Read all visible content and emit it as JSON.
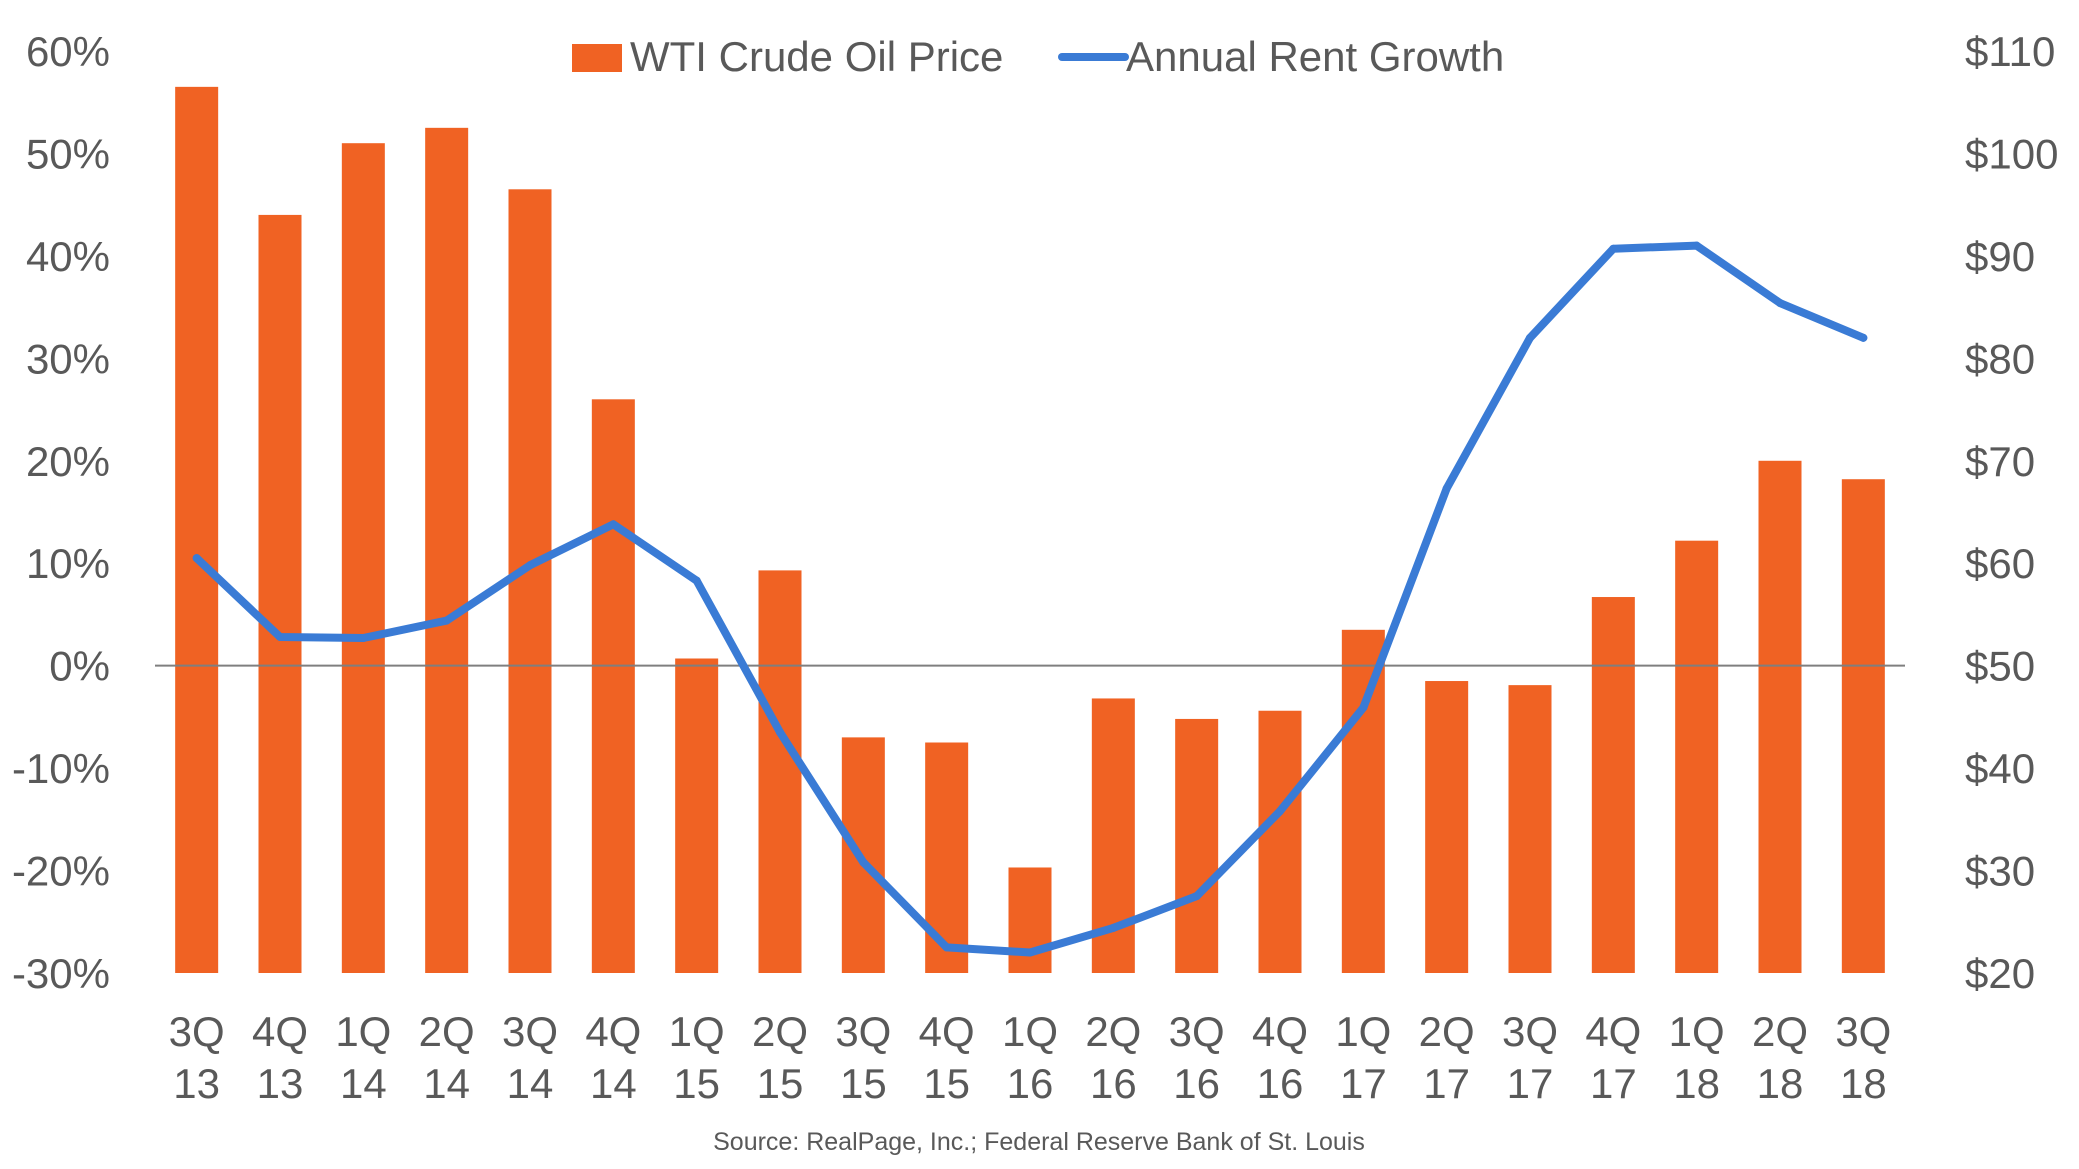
{
  "chart_data": {
    "type": "bar+line",
    "categories": [
      [
        "3Q",
        "13"
      ],
      [
        "4Q",
        "13"
      ],
      [
        "1Q",
        "14"
      ],
      [
        "2Q",
        "14"
      ],
      [
        "3Q",
        "14"
      ],
      [
        "4Q",
        "14"
      ],
      [
        "1Q",
        "15"
      ],
      [
        "2Q",
        "15"
      ],
      [
        "3Q",
        "15"
      ],
      [
        "4Q",
        "15"
      ],
      [
        "1Q",
        "16"
      ],
      [
        "2Q",
        "16"
      ],
      [
        "3Q",
        "16"
      ],
      [
        "4Q",
        "16"
      ],
      [
        "1Q",
        "17"
      ],
      [
        "2Q",
        "17"
      ],
      [
        "3Q",
        "17"
      ],
      [
        "4Q",
        "17"
      ],
      [
        "1Q",
        "18"
      ],
      [
        "2Q",
        "18"
      ],
      [
        "3Q",
        "18"
      ]
    ],
    "series": [
      {
        "name": "WTI Crude Oil Price",
        "type": "bar",
        "axis": "left",
        "color": "#F06223",
        "values": [
          56.5,
          44,
          51,
          52.5,
          46.5,
          26,
          0.7,
          9.3,
          -7,
          -7.5,
          -19.7,
          -3.2,
          -5.2,
          -4.4,
          3.5,
          -1.5,
          -1.9,
          6.7,
          12.2,
          20,
          18.2
        ]
      },
      {
        "name": "Annual Rent Growth",
        "type": "line",
        "axis": "right",
        "color": "#3A7BD5",
        "values": [
          60.5,
          52.8,
          52.7,
          54.4,
          59.8,
          63.8,
          58.3,
          43.5,
          30.8,
          22.5,
          22,
          24.4,
          27.5,
          35.8,
          45.9,
          67.3,
          82,
          90.7,
          91,
          85.4,
          82
        ]
      }
    ],
    "y_left": {
      "ylim": [
        -30,
        60
      ],
      "ticks": [
        "60%",
        "50%",
        "40%",
        "30%",
        "20%",
        "10%",
        "0%",
        "-10%",
        "-20%",
        "-30%"
      ],
      "tick_values": [
        60,
        50,
        40,
        30,
        20,
        10,
        0,
        -10,
        -20,
        -30
      ]
    },
    "y_right": {
      "ylim": [
        20,
        110
      ],
      "ticks": [
        "$110",
        "$100",
        "$90",
        "$80",
        "$70",
        "$60",
        "$50",
        "$40",
        "$30",
        "$20"
      ],
      "tick_values": [
        110,
        100,
        90,
        80,
        70,
        60,
        50,
        40,
        30,
        20
      ]
    },
    "zero_line": true,
    "grid": false,
    "legend": {
      "position": "top-center",
      "items": [
        "WTI Crude Oil Price",
        "Annual Rent Growth"
      ]
    },
    "title": "",
    "xlabel": "",
    "source": "Source: RealPage, Inc.; Federal Reserve Bank of St. Louis"
  }
}
